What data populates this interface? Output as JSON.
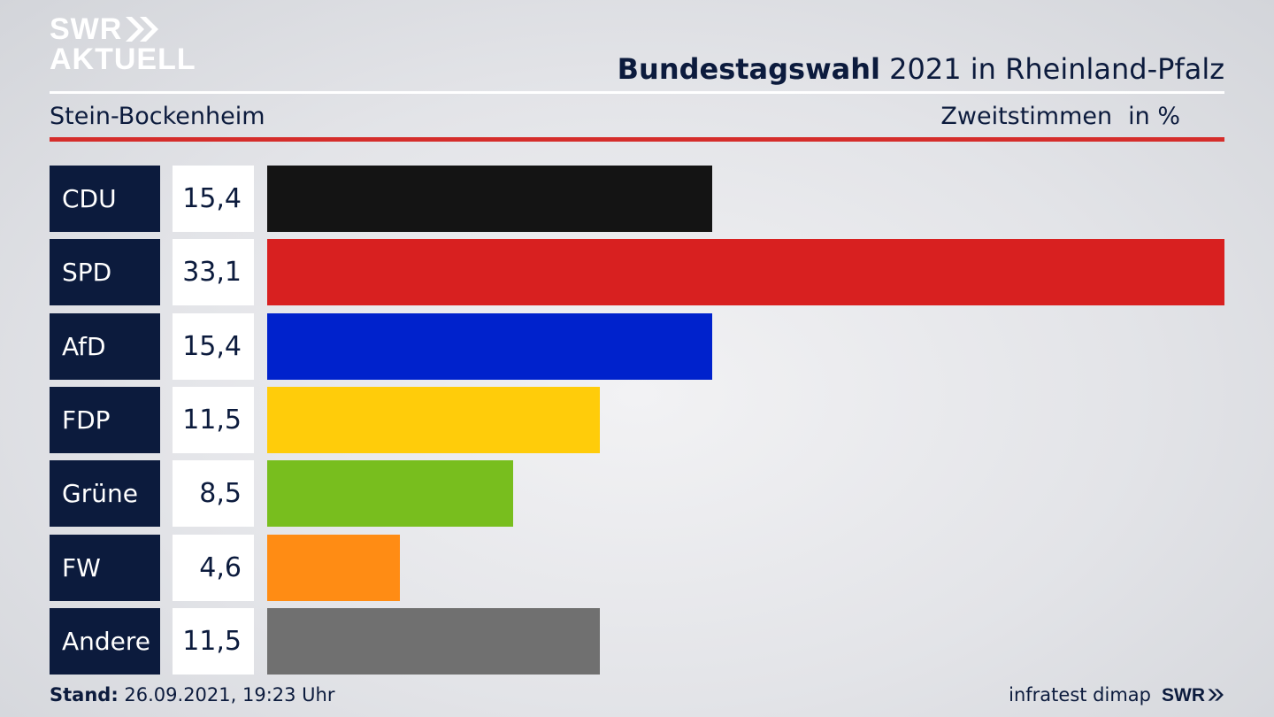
{
  "logo": {
    "line1": "SWR",
    "line2": "AKTUELL"
  },
  "header": {
    "title_bold": "Bundestagswahl",
    "title_rest": " 2021 in Rheinland-Pfalz",
    "region": "Stein-Bockenheim",
    "metric": "Zweitstimmen",
    "unit": "in %"
  },
  "chart_data": {
    "type": "bar",
    "orientation": "horizontal",
    "categories": [
      "CDU",
      "SPD",
      "AfD",
      "FDP",
      "Grüne",
      "FW",
      "Andere"
    ],
    "values": [
      15.4,
      33.1,
      15.4,
      11.5,
      8.5,
      4.6,
      11.5
    ],
    "labels": [
      "15,4",
      "33,1",
      "15,4",
      "11,5",
      "8,5",
      "4,6",
      "11,5"
    ],
    "colors": [
      "#141414",
      "#d82020",
      "#0022cc",
      "#ffcc0a",
      "#78be1e",
      "#ff8c14",
      "#707070"
    ],
    "title": "Bundestagswahl 2021 in Rheinland-Pfalz",
    "grid": false,
    "legend": "none"
  },
  "footer": {
    "stand_label": "Stand:",
    "stand_value": " 26.09.2021, 19:23 Uhr",
    "source": "infratest dimap",
    "brand": "SWR"
  }
}
